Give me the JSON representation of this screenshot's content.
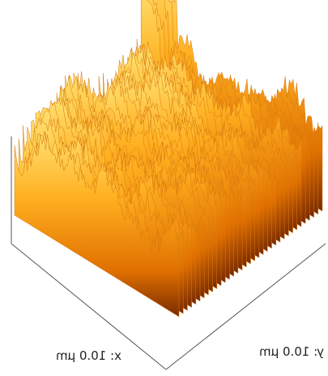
{
  "labels": {
    "x_axis": "x: 10.0 μm",
    "y_axis": "y: 10.0 μm"
  }
}
